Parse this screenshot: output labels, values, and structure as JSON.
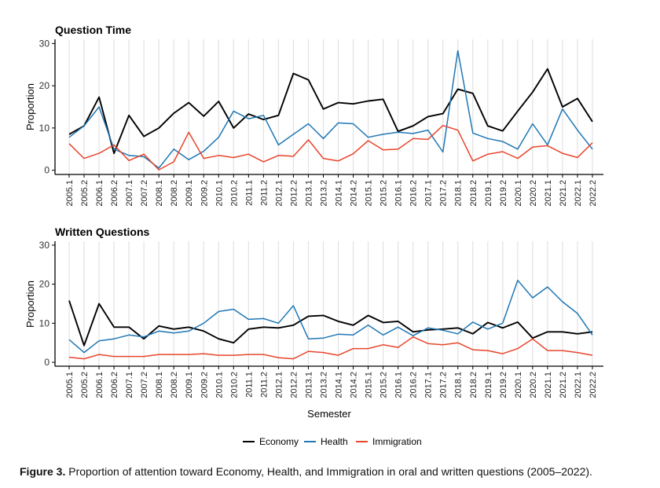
{
  "semesters": [
    "2005.1",
    "2005.2",
    "2006.1",
    "2006.2",
    "2007.1",
    "2007.2",
    "2008.1",
    "2008.2",
    "2009.1",
    "2009.2",
    "2010.1",
    "2010.2",
    "2011.1",
    "2011.2",
    "2012.1",
    "2012.2",
    "2013.1",
    "2013.2",
    "2014.1",
    "2014.2",
    "2015.1",
    "2015.2",
    "2016.1",
    "2016.2",
    "2017.1",
    "2017.2",
    "2018.1",
    "2018.2",
    "2019.1",
    "2019.2",
    "2020.1",
    "2020.2",
    "2021.1",
    "2021.2",
    "2022.1",
    "2022.2"
  ],
  "colors": {
    "Economy": "#000000",
    "Health": "#1f77b4",
    "Immigration": "#e8452c"
  },
  "xlabel": "Semester",
  "legend": {
    "items": [
      "Economy",
      "Health",
      "Immigration"
    ],
    "position": "bottom"
  },
  "caption": {
    "label": "Figure 3.",
    "text": "Proportion of attention toward Economy, Health, and Immigration in oral and written questions (2005–2022)."
  },
  "chart_data": [
    {
      "type": "line",
      "title": "Question Time",
      "xlabel": "Semester",
      "ylabel": "Proportion",
      "ylim": [
        -1,
        31
      ],
      "yticks": [
        0,
        10,
        20,
        30
      ],
      "grid": "vertical",
      "series": [
        {
          "name": "Economy",
          "values": [
            8.5,
            10.5,
            17.3,
            4.0,
            13.0,
            8.0,
            10.0,
            13.5,
            16.0,
            12.8,
            16.3,
            10.0,
            13.3,
            12.0,
            13.0,
            22.9,
            21.4,
            14.5,
            16.0,
            15.7,
            16.4,
            16.8,
            9.2,
            10.5,
            12.7,
            13.4,
            19.2,
            18.2,
            10.5,
            9.3,
            14.0,
            18.5,
            24.0,
            15.0,
            17.0,
            11.5
          ]
        },
        {
          "name": "Health",
          "values": [
            7.8,
            10.5,
            15.0,
            5.0,
            3.5,
            3.2,
            0.5,
            5.0,
            2.5,
            4.5,
            7.8,
            14.0,
            12.2,
            13.0,
            6.0,
            8.5,
            11.0,
            7.5,
            11.2,
            11.0,
            7.8,
            8.5,
            9.0,
            8.7,
            9.5,
            4.3,
            28.3,
            8.8,
            7.5,
            6.8,
            5.0,
            11.0,
            6.0,
            14.5,
            9.5,
            5.0
          ]
        },
        {
          "name": "Immigration",
          "values": [
            6.3,
            2.8,
            4.0,
            6.0,
            2.3,
            3.8,
            0.1,
            2.0,
            9.0,
            2.8,
            3.5,
            3.0,
            3.8,
            2.0,
            3.5,
            3.3,
            7.2,
            2.8,
            2.2,
            3.9,
            7.0,
            4.8,
            5.0,
            7.5,
            7.3,
            10.6,
            9.5,
            2.2,
            3.8,
            4.4,
            2.8,
            5.5,
            5.8,
            4.0,
            3.0,
            6.5
          ]
        }
      ]
    },
    {
      "type": "line",
      "title": "Written Questions",
      "xlabel": "Semester",
      "ylabel": "Proportion",
      "ylim": [
        -1,
        31
      ],
      "yticks": [
        0,
        10,
        20,
        30
      ],
      "grid": "vertical",
      "series": [
        {
          "name": "Economy",
          "values": [
            15.8,
            4.3,
            15.0,
            9.0,
            9.0,
            6.0,
            9.3,
            8.5,
            9.0,
            8.0,
            6.0,
            5.0,
            8.5,
            9.0,
            8.8,
            9.5,
            11.8,
            12.0,
            10.5,
            9.5,
            12.0,
            10.2,
            10.5,
            7.8,
            8.3,
            8.5,
            8.8,
            7.3,
            10.2,
            8.8,
            10.3,
            6.2,
            7.8,
            7.8,
            7.3,
            7.8
          ]
        },
        {
          "name": "Health",
          "values": [
            5.8,
            2.5,
            5.5,
            6.0,
            7.0,
            6.5,
            8.0,
            7.5,
            8.0,
            10.0,
            13.0,
            13.6,
            11.0,
            11.2,
            10.0,
            14.5,
            6.0,
            6.2,
            7.2,
            7.0,
            9.5,
            7.0,
            9.0,
            6.8,
            8.8,
            8.2,
            7.3,
            10.3,
            8.5,
            10.0,
            21.0,
            16.5,
            19.3,
            15.5,
            12.5,
            7.0
          ]
        },
        {
          "name": "Immigration",
          "values": [
            1.3,
            0.9,
            2.0,
            1.5,
            1.5,
            1.5,
            2.0,
            2.0,
            2.0,
            2.2,
            1.8,
            1.8,
            2.0,
            2.0,
            1.2,
            0.9,
            2.8,
            2.5,
            1.8,
            3.5,
            3.5,
            4.5,
            3.8,
            6.5,
            4.8,
            4.5,
            5.0,
            3.2,
            3.0,
            2.2,
            3.5,
            6.0,
            3.0,
            3.0,
            2.5,
            1.8
          ]
        }
      ]
    }
  ]
}
